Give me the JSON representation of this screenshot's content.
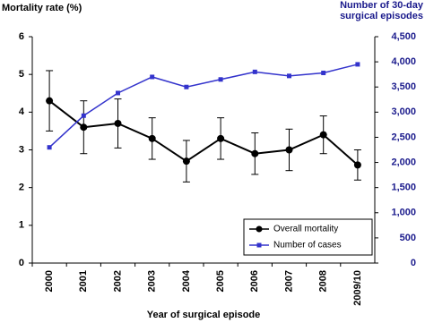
{
  "chart_data": {
    "type": "line",
    "y_label": "Mortality rate (%)",
    "y2_label": [
      "Number of 30-day",
      "surgical episodes"
    ],
    "x_label": "Year of surgical episode",
    "categories": [
      "2000",
      "2001",
      "2002",
      "2003",
      "2004",
      "2005",
      "2006",
      "2007",
      "2008",
      "2009/10"
    ],
    "series": [
      {
        "name": "Overall mortality",
        "color": "#000000",
        "values": [
          4.3,
          3.6,
          3.7,
          3.3,
          2.7,
          3.3,
          2.9,
          3.0,
          3.4,
          2.6
        ],
        "errors": [
          0.8,
          0.7,
          0.65,
          0.55,
          0.55,
          0.55,
          0.55,
          0.55,
          0.5,
          0.4
        ]
      },
      {
        "name": "Number of cases",
        "color": "#3333cc",
        "axis": "y2",
        "values": [
          2300,
          2930,
          3380,
          3700,
          3500,
          3650,
          3800,
          3720,
          3780,
          3950
        ]
      }
    ],
    "ylim": [
      0,
      6
    ],
    "yticks": [
      0,
      1,
      2,
      3,
      4,
      5,
      6
    ],
    "y2lim": [
      0,
      4500
    ],
    "y2ticks": [
      0,
      500,
      {
        "value": 1000,
        "label": "1,000"
      },
      {
        "value": 1500,
        "label": "1,500"
      },
      {
        "value": 2000,
        "label": "2,000"
      },
      {
        "value": 2500,
        "label": "2,500"
      },
      {
        "value": 3000,
        "label": "3,000"
      },
      {
        "value": 3500,
        "label": "3,500"
      },
      {
        "value": 4000,
        "label": "4,000"
      },
      {
        "value": 4500,
        "label": "4,500"
      }
    ],
    "legend": "lower right"
  }
}
